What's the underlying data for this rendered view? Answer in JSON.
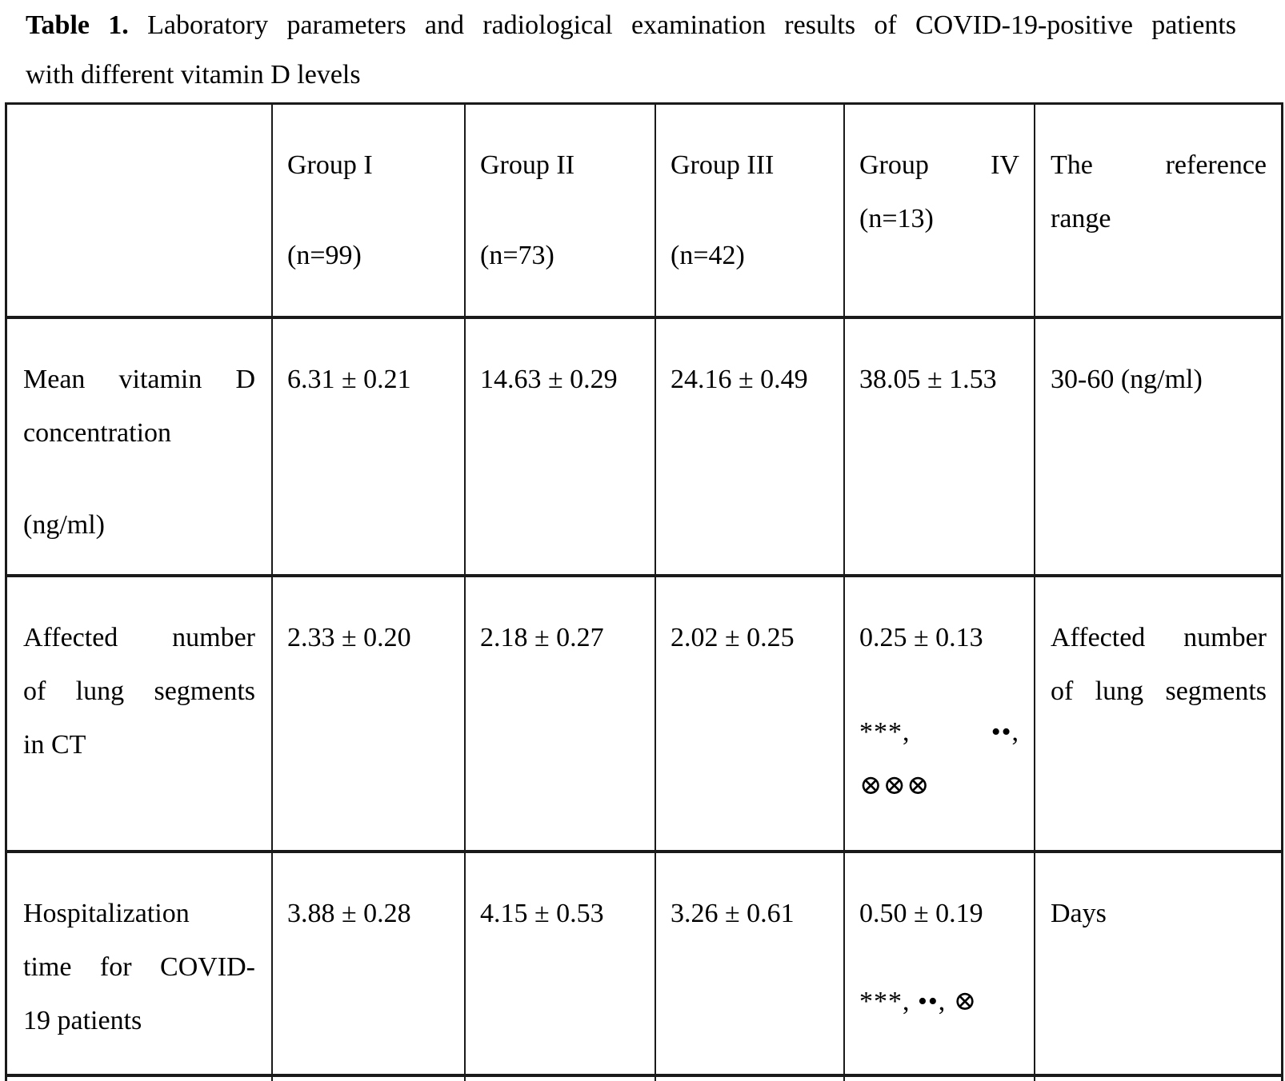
{
  "page": {
    "title_bold": "Table 1.",
    "title_rest": "Laboratory parameters and radiological examination results of COVID-19-positive patients",
    "title_line2": "with different vitamin D levels"
  },
  "table": {
    "header": {
      "g1_name": "Group I",
      "g1_n": "(n=99)",
      "g2_name": "Group II",
      "g2_n": "(n=73)",
      "g3_name": "Group III",
      "g3_n": "(n=42)",
      "g4_name": "Group IV",
      "g4_n": "(n=13)",
      "ref_line1": "The reference",
      "ref_line2": "range"
    },
    "row1": {
      "label_l1": "Mean vitamin D",
      "label_l2": "concentration",
      "label_l3": "(ng/ml)",
      "g1": "6.31 ± 0.21",
      "g2": "14.63 ± 0.29",
      "g3": "24.16 ± 0.49",
      "g4": "38.05 ± 1.53",
      "ref": "30-60 (ng/ml)"
    },
    "row2": {
      "label_l1": "Affected number",
      "label_l2": "of lung segments",
      "label_l3": "in CT",
      "g1": "2.33 ± 0.20",
      "g2": "2.18 ± 0.27",
      "g3": "2.02 ± 0.25",
      "g4": "0.25 ± 0.13",
      "g4_sig_line1": "***, ••,",
      "g4_sig_line2": "⊗⊗⊗",
      "ref_l1": "Affected number",
      "ref_l2": "of lung segments"
    },
    "row3": {
      "label_l1": "Hospitalization",
      "label_l2": "time for COVID-",
      "label_l3": "19 patients",
      "g1": "3.88 ± 0.28",
      "g2": "4.15 ± 0.53",
      "g3": "3.26 ± 0.61",
      "g4": "0.50 ± 0.19",
      "g4_sig": "***, ••, ⊗",
      "ref": "Days"
    }
  },
  "colors": {
    "text": "#000000",
    "border": "#1a1a1a",
    "background": "#ffffff"
  }
}
